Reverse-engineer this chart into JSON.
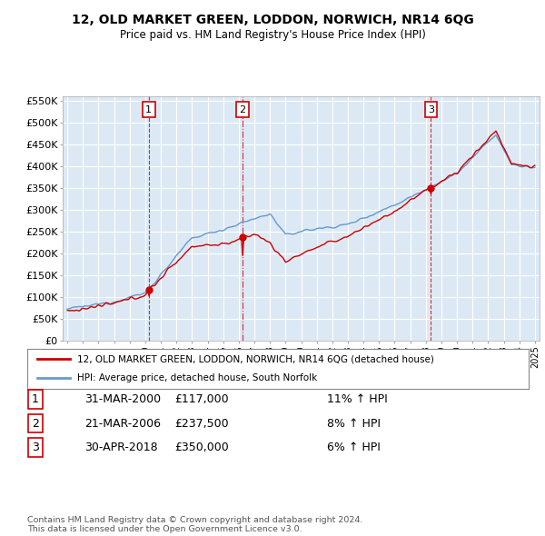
{
  "title": "12, OLD MARKET GREEN, LODDON, NORWICH, NR14 6QG",
  "subtitle": "Price paid vs. HM Land Registry's House Price Index (HPI)",
  "legend_label_red": "12, OLD MARKET GREEN, LODDON, NORWICH, NR14 6QG (detached house)",
  "legend_label_blue": "HPI: Average price, detached house, South Norfolk",
  "transactions": [
    {
      "num": 1,
      "date": "31-MAR-2000",
      "price": "£117,000",
      "hpi": "11% ↑ HPI",
      "year": 2000.22
    },
    {
      "num": 2,
      "date": "21-MAR-2006",
      "price": "£237,500",
      "hpi": "8% ↑ HPI",
      "year": 2006.22
    },
    {
      "num": 3,
      "date": "30-APR-2018",
      "price": "£350,000",
      "hpi": "6% ↑ HPI",
      "year": 2018.33
    }
  ],
  "footer": "Contains HM Land Registry data © Crown copyright and database right 2024.\nThis data is licensed under the Open Government Licence v3.0.",
  "ylim": [
    0,
    550000
  ],
  "yticks": [
    0,
    50000,
    100000,
    150000,
    200000,
    250000,
    300000,
    350000,
    400000,
    450000,
    500000,
    550000
  ],
  "background_color": "#ffffff",
  "plot_bg_color": "#dce9f5",
  "grid_color": "#ffffff",
  "red_color": "#cc0000",
  "blue_color": "#6699cc",
  "trans1_price": 117000,
  "trans2_price": 237500,
  "trans3_price": 350000
}
